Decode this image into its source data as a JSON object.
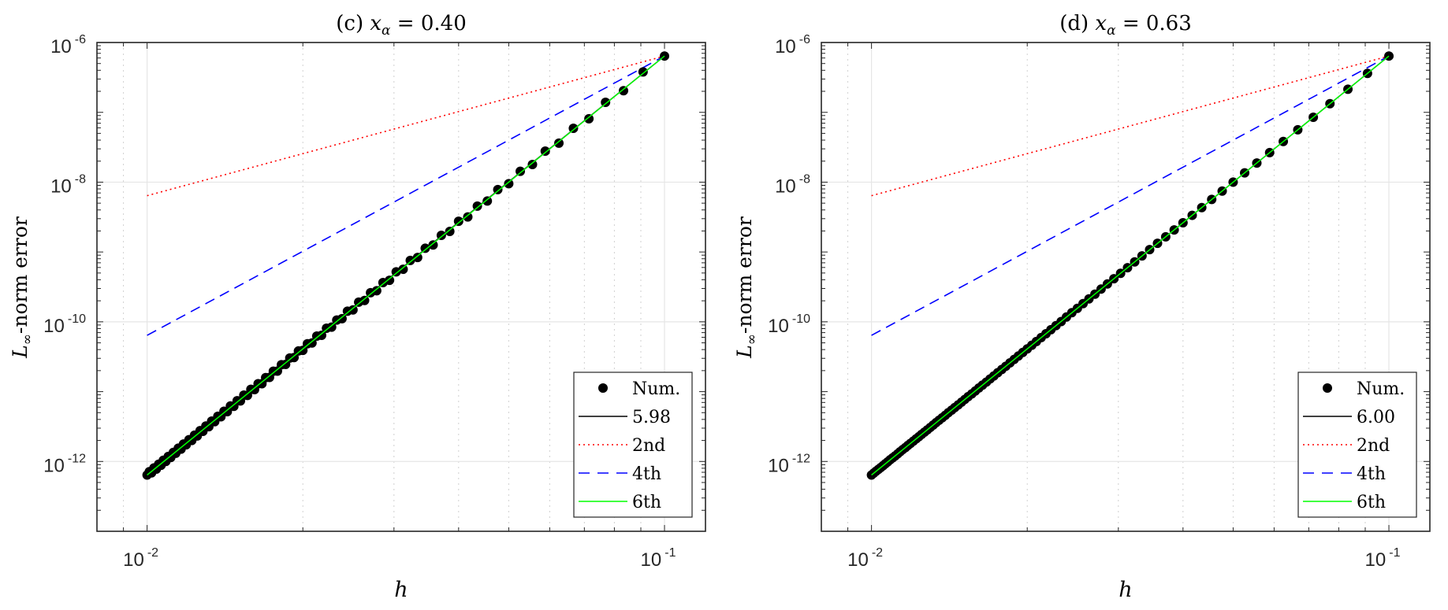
{
  "chart_data": [
    {
      "type": "scatter",
      "title": {
        "label": "(c)",
        "symbol": "x",
        "subscript": "α",
        "value": "= 0.40"
      },
      "xlabel": "h",
      "ylabel": {
        "symbol": "L",
        "subscript": "∞",
        "text": "-norm error"
      },
      "xscale": "log",
      "yscale": "log",
      "xlim": [
        0.008,
        0.12
      ],
      "ylim": [
        1e-13,
        1e-06
      ],
      "xticks": [
        {
          "value": 0.01,
          "base": "10",
          "exp": "-2"
        },
        {
          "value": 0.1,
          "base": "10",
          "exp": "-1"
        }
      ],
      "yticks": [
        {
          "value": 1e-06,
          "base": "10",
          "exp": "-6"
        },
        {
          "value": 1e-08,
          "base": "10",
          "exp": "-8"
        },
        {
          "value": 1e-10,
          "base": "10",
          "exp": "-10"
        },
        {
          "value": 1e-12,
          "base": "10",
          "exp": "-12"
        }
      ],
      "grid": true,
      "legend": "bottom-right",
      "series": [
        {
          "name": "Num.",
          "style": "marker",
          "color": "#000000",
          "x": [
            0.1,
            0.09091,
            0.08333,
            0.07692,
            0.07143,
            0.06667,
            0.0625,
            0.05882,
            0.05556,
            0.05263,
            0.05,
            0.04762,
            0.04545,
            0.04348,
            0.04167,
            0.04,
            0.03846,
            0.03704,
            0.03571,
            0.03448,
            0.03333,
            0.03226,
            0.03125,
            0.0303,
            0.02941,
            0.02857,
            0.02778,
            0.02703,
            0.02632,
            0.02564,
            0.025,
            0.02439,
            0.02381,
            0.02326,
            0.02273,
            0.02222,
            0.02174,
            0.02128,
            0.02083,
            0.02041,
            0.02,
            0.01961,
            0.01923,
            0.01887,
            0.01852,
            0.01818,
            0.01786,
            0.01754,
            0.01724,
            0.01695,
            0.01667,
            0.01639,
            0.01613,
            0.01587,
            0.01563,
            0.01538,
            0.01515,
            0.01493,
            0.01471,
            0.01449,
            0.01429,
            0.01408,
            0.01389,
            0.0137,
            0.01351,
            0.01333,
            0.01316,
            0.01299,
            0.01282,
            0.01266,
            0.0125,
            0.01235,
            0.0122,
            0.01205,
            0.0119,
            0.01176,
            0.01163,
            0.01149,
            0.01136,
            0.01124,
            0.01111,
            0.01099,
            0.01087,
            0.01075,
            0.01064,
            0.01053,
            0.01042,
            0.01031,
            0.0102,
            0.0101,
            0.01
          ],
          "y": [
            6.4e-07,
            3.79e-07,
            2.04e-07,
            1.39e-07,
            8.08e-08,
            5.9e-08,
            3.62e-08,
            2.78e-08,
            1.79e-08,
            1.43e-08,
            9.5e-09,
            7.83e-09,
            5.37e-09,
            4.54e-09,
            3.18e-09,
            2.75e-09,
            1.97e-09,
            1.73e-09,
            1.26e-09,
            1.13e-09,
            8.34e-10,
            7.57e-10,
            5.66e-10,
            5.2e-10,
            3.93e-10,
            3.65e-10,
            2.79e-10,
            2.61e-10,
            2.02e-10,
            1.91e-10,
            1.48e-10,
            1.42e-10,
            1.11e-10,
            1.06e-10,
            8.38e-11,
            8.1e-11,
            6.41e-11,
            6.24e-11,
            4.97e-11,
            4.85e-11,
            3.9e-11,
            3.82e-11,
            3.08e-11,
            3.03e-11,
            2.45e-11,
            2.43e-11,
            1.97e-11,
            1.96e-11,
            1.6e-11,
            1.59e-11,
            1.3e-11,
            1.3e-11,
            1.07e-11,
            1.08e-11,
            8.84e-12,
            8.91e-12,
            7.35e-12,
            7.42e-12,
            6.15e-12,
            6.23e-12,
            5.17e-12,
            5.24e-12,
            4.36e-12,
            4.44e-12,
            3.71e-12,
            3.78e-12,
            3.15e-12,
            3.22e-12,
            2.7e-12,
            2.76e-12,
            2.32e-12,
            2.38e-12,
            2e-12,
            2.05e-12,
            1.73e-12,
            1.78e-12,
            1.5e-12,
            1.55e-12,
            1.31e-12,
            1.35e-12,
            1.14e-12,
            1.18e-12,
            1e-12,
            1.04e-12,
            8.82e-13,
            9.15e-13,
            7.77e-13,
            8.07e-13,
            6.87e-13,
            7.14e-13,
            6.4e-13
          ]
        },
        {
          "name": "5.98",
          "style": "solid",
          "color": "#000000",
          "x": [
            0.01,
            0.1
          ],
          "y": [
            6.7e-13,
            6.4e-07
          ]
        },
        {
          "name": "2nd",
          "style": "dotted",
          "color": "#ff0000",
          "x": [
            0.01,
            0.1
          ],
          "y": [
            6.4e-09,
            6.4e-07
          ]
        },
        {
          "name": "4th",
          "style": "dashed",
          "color": "#0000ff",
          "x": [
            0.01,
            0.1
          ],
          "y": [
            6.4e-11,
            6.4e-07
          ]
        },
        {
          "name": "6th",
          "style": "solid",
          "color": "#00ff00",
          "x": [
            0.01,
            0.1
          ],
          "y": [
            6.4e-13,
            6.4e-07
          ]
        }
      ]
    },
    {
      "type": "scatter",
      "title": {
        "label": "(d)",
        "symbol": "x",
        "subscript": "α",
        "value": "= 0.63"
      },
      "xlabel": "h",
      "ylabel": {
        "symbol": "L",
        "subscript": "∞",
        "text": "-norm error"
      },
      "xscale": "log",
      "yscale": "log",
      "xlim": [
        0.008,
        0.12
      ],
      "ylim": [
        1e-13,
        1e-06
      ],
      "xticks": [
        {
          "value": 0.01,
          "base": "10",
          "exp": "-2"
        },
        {
          "value": 0.1,
          "base": "10",
          "exp": "-1"
        }
      ],
      "yticks": [
        {
          "value": 1e-06,
          "base": "10",
          "exp": "-6"
        },
        {
          "value": 1e-08,
          "base": "10",
          "exp": "-8"
        },
        {
          "value": 1e-10,
          "base": "10",
          "exp": "-10"
        },
        {
          "value": 1e-12,
          "base": "10",
          "exp": "-12"
        }
      ],
      "grid": true,
      "legend": "bottom-right",
      "series": [
        {
          "name": "Num.",
          "style": "marker",
          "color": "#000000",
          "x": [
            0.1,
            0.09091,
            0.08333,
            0.07692,
            0.07143,
            0.06667,
            0.0625,
            0.05882,
            0.05556,
            0.05263,
            0.05,
            0.04762,
            0.04545,
            0.04348,
            0.04167,
            0.04,
            0.03846,
            0.03704,
            0.03571,
            0.03448,
            0.03333,
            0.03226,
            0.03125,
            0.0303,
            0.02941,
            0.02857,
            0.02778,
            0.02703,
            0.02632,
            0.02564,
            0.025,
            0.02439,
            0.02381,
            0.02326,
            0.02273,
            0.02222,
            0.02174,
            0.02128,
            0.02083,
            0.02041,
            0.02,
            0.01961,
            0.01923,
            0.01887,
            0.01852,
            0.01818,
            0.01786,
            0.01754,
            0.01724,
            0.01695,
            0.01667,
            0.01639,
            0.01613,
            0.01587,
            0.01563,
            0.01538,
            0.01515,
            0.01493,
            0.01471,
            0.01449,
            0.01429,
            0.01408,
            0.01389,
            0.0137,
            0.01351,
            0.01333,
            0.01316,
            0.01299,
            0.01282,
            0.01266,
            0.0125,
            0.01235,
            0.0122,
            0.01205,
            0.0119,
            0.01176,
            0.01163,
            0.01149,
            0.01136,
            0.01124,
            0.01111,
            0.01099,
            0.01087,
            0.01075,
            0.01064,
            0.01053,
            0.01042,
            0.01031,
            0.0102,
            0.0101,
            0.01
          ],
          "y": [
            6.4e-07,
            3.61e-07,
            2.14e-07,
            1.33e-07,
            8.5e-08,
            5.62e-08,
            3.82e-08,
            2.65e-08,
            1.88e-08,
            1.36e-08,
            1e-08,
            7.46e-09,
            5.65e-09,
            4.32e-09,
            3.35e-09,
            2.62e-09,
            2.07e-09,
            1.65e-09,
            1.33e-09,
            1.08e-09,
            8.78e-10,
            7.21e-10,
            5.96e-10,
            4.95e-10,
            4.14e-10,
            3.48e-10,
            2.94e-10,
            2.49e-10,
            2.13e-10,
            1.82e-10,
            1.56e-10,
            1.35e-10,
            1.17e-10,
            1.01e-10,
            8.82e-11,
            7.71e-11,
            6.75e-11,
            5.94e-11,
            5.23e-11,
            4.62e-11,
            4.1e-11,
            3.64e-11,
            3.24e-11,
            2.89e-11,
            2.58e-11,
            2.31e-11,
            2.08e-11,
            1.87e-11,
            1.68e-11,
            1.52e-11,
            1.37e-11,
            1.24e-11,
            1.13e-11,
            1.02e-11,
            9.31e-12,
            8.49e-12,
            7.74e-12,
            7.07e-12,
            6.47e-12,
            5.93e-12,
            5.44e-12,
            5e-12,
            4.59e-12,
            4.23e-12,
            3.9e-12,
            3.6e-12,
            3.32e-12,
            3.07e-12,
            2.84e-12,
            2.63e-12,
            2.44e-12,
            2.27e-12,
            2.11e-12,
            1.96e-12,
            1.82e-12,
            1.7e-12,
            1.58e-12,
            1.48e-12,
            1.38e-12,
            1.29e-12,
            1.2e-12,
            1.13e-12,
            1.06e-12,
            9.89e-13,
            9.28e-13,
            8.71e-13,
            8.18e-13,
            7.69e-13,
            7.23e-13,
            6.8e-13,
            6.4e-13
          ]
        },
        {
          "name": "6.00",
          "style": "solid",
          "color": "#000000",
          "x": [
            0.01,
            0.1
          ],
          "y": [
            6.4e-13,
            6.4e-07
          ]
        },
        {
          "name": "2nd",
          "style": "dotted",
          "color": "#ff0000",
          "x": [
            0.01,
            0.1
          ],
          "y": [
            6.4e-09,
            6.4e-07
          ]
        },
        {
          "name": "4th",
          "style": "dashed",
          "color": "#0000ff",
          "x": [
            0.01,
            0.1
          ],
          "y": [
            6.4e-11,
            6.4e-07
          ]
        },
        {
          "name": "6th",
          "style": "solid",
          "color": "#00ff00",
          "x": [
            0.01,
            0.1
          ],
          "y": [
            6.4e-13,
            6.4e-07
          ]
        }
      ]
    }
  ]
}
